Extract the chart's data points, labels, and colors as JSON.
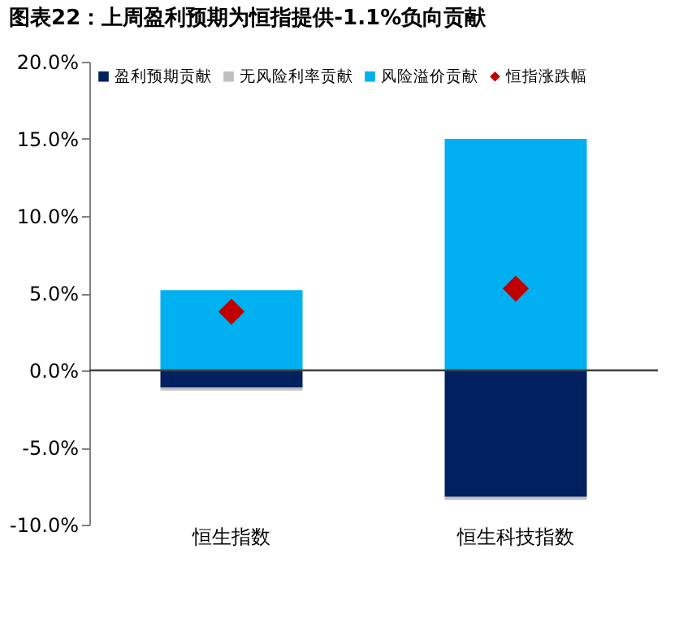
{
  "chart_data": {
    "type": "bar",
    "title": "图表22：上周盈利预期为恒指提供-1.1%负向贡献",
    "categories": [
      "恒生指数",
      "恒生科技指数"
    ],
    "stacked": true,
    "series": [
      {
        "name": "盈利预期贡献",
        "color": "#002060",
        "values": [
          -1.1,
          -8.2
        ]
      },
      {
        "name": "无风险利率贡献",
        "color": "#bfbfbf",
        "values": [
          -0.2,
          -0.2
        ]
      },
      {
        "name": "风险溢价贡献",
        "color": "#00b0f0",
        "values": [
          5.2,
          15.0
        ]
      },
      {
        "name": "恒指涨跌幅",
        "type": "scatter",
        "marker": "diamond",
        "color": "#c00000",
        "values": [
          3.8,
          5.3
        ]
      }
    ],
    "ylim": [
      -10,
      20
    ],
    "yticks": [
      {
        "value": -10,
        "label": "-10.0%"
      },
      {
        "value": -5,
        "label": "-5.0%"
      },
      {
        "value": 0,
        "label": "0.0%"
      },
      {
        "value": 5,
        "label": "5.0%"
      },
      {
        "value": 10,
        "label": "10.0%"
      },
      {
        "value": 15,
        "label": "15.0%"
      },
      {
        "value": 20,
        "label": "20.0%"
      }
    ],
    "ref_lines": [
      {
        "axis": "y",
        "value": 0,
        "color": "#404040"
      }
    ],
    "grid": false,
    "legend": "top left"
  }
}
